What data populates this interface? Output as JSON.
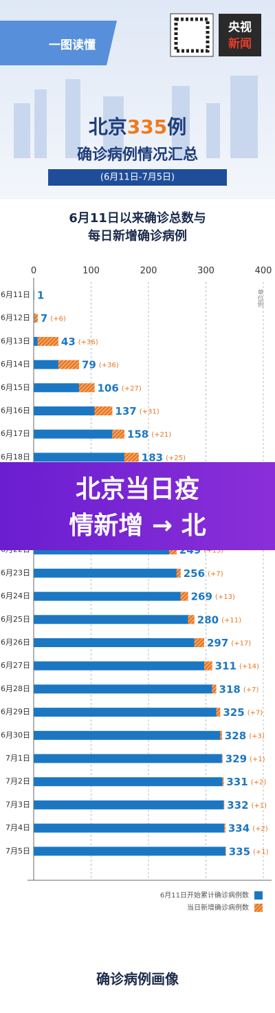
{
  "header": {
    "tag": "一图读懂",
    "brand_top": "央视",
    "brand_bottom": "新闻",
    "title_a": "北京",
    "title_num": "335",
    "title_b": "例",
    "subtitle": "确诊病例情况汇总",
    "period": "(6月11日-7月5日)"
  },
  "chart_data": {
    "type": "bar",
    "title_lines": [
      "6月11日以来确诊总数与",
      "每日新增确诊病例"
    ],
    "unit": "单位例",
    "categories": [
      "6月11日",
      "6月12日",
      "6月13日",
      "6月14日",
      "6月15日",
      "6月16日",
      "6月17日",
      "6月18日",
      "6月22日",
      "6月23日",
      "6月24日",
      "6月25日",
      "6月26日",
      "6月27日",
      "6月28日",
      "6月29日",
      "6月30日",
      "7月1日",
      "7月2日",
      "7月3日",
      "7月4日",
      "7月5日"
    ],
    "series": [
      {
        "name": "6月11日开始累计确诊病例数",
        "color": "#1c77c3",
        "values": [
          1,
          1,
          7,
          43,
          79,
          106,
          137,
          158,
          236,
          249,
          256,
          269,
          280,
          297,
          311,
          318,
          325,
          328,
          329,
          331,
          332,
          334
        ]
      },
      {
        "name": "当日新增确诊病例数",
        "color": "#e8751f",
        "values": [
          null,
          6,
          36,
          36,
          27,
          31,
          21,
          25,
          13,
          7,
          13,
          11,
          17,
          14,
          7,
          7,
          3,
          1,
          2,
          1,
          2,
          1
        ],
        "value_labels": [
          null,
          "(+6)",
          "(+36)",
          "(+36)",
          "(+27)",
          "(+31)",
          "(+21)",
          "(+25)",
          "(+13)",
          "(+7)",
          "(+13)",
          "(+11)",
          "(+17)",
          "(+14)",
          "(+7)",
          "(+7)",
          "(+3)",
          "(+1)",
          "(+2)",
          "(+1)",
          "(+2)",
          "(+1)"
        ]
      }
    ],
    "totals": [
      1,
      7,
      43,
      79,
      106,
      137,
      158,
      183,
      249,
      256,
      269,
      280,
      297,
      311,
      318,
      325,
      328,
      329,
      331,
      332,
      334,
      335
    ],
    "xlim": [
      0,
      400
    ],
    "xticks": [
      0,
      100,
      200,
      300,
      400
    ],
    "grid": true,
    "stacked": true
  },
  "banner": {
    "lines": [
      "北京当日疫",
      "情新增 → 北"
    ]
  },
  "footer": {
    "title": "确诊病例画像"
  }
}
